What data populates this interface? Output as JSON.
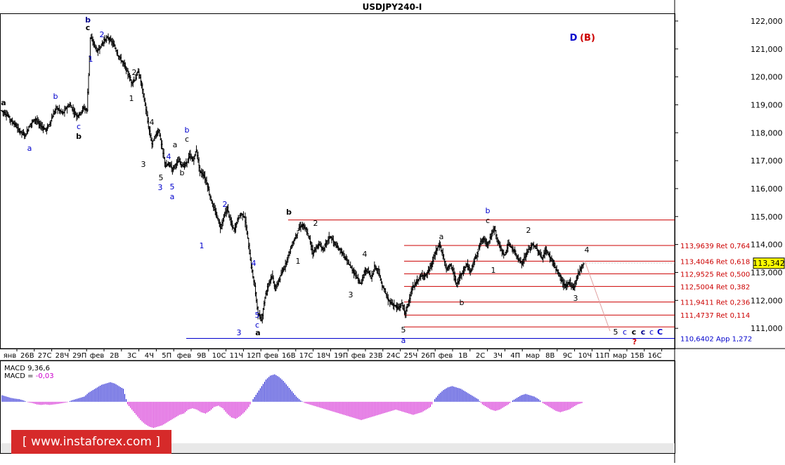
{
  "chart_data": {
    "type": "ohlc",
    "title": "USDJPY240-I",
    "wave_title_d": "D",
    "wave_title_b": "(B)",
    "y_range": [
      110.3,
      122.25
    ],
    "y_ticks": [
      "122,000",
      "121,000",
      "120,000",
      "119,000",
      "118,000",
      "117,000",
      "116,000",
      "115,000",
      "114,000",
      "113,000",
      "112,000",
      "111,000"
    ],
    "x_ticks": [
      "янв",
      "26В",
      "27С",
      "28Ч",
      "29П",
      "фев",
      "2В",
      "3С",
      "4Ч",
      "5П",
      "фев",
      "9В",
      "10С",
      "11Ч",
      "12П",
      "фев",
      "16В",
      "17С",
      "18Ч",
      "19П",
      "фев",
      "23В",
      "24С",
      "25Ч",
      "26П",
      "фев",
      "1В",
      "2С",
      "3Ч",
      "4П",
      "мар",
      "8В",
      "9С",
      "10Ч",
      "11П",
      "мар",
      "15В",
      "16С"
    ],
    "current_price": "113,342",
    "price_path": [
      118.8,
      118.7,
      118.6,
      118.4,
      118.3,
      118.1,
      118.0,
      117.9,
      118.2,
      118.4,
      118.5,
      118.3,
      118.2,
      118.1,
      118.3,
      118.6,
      118.9,
      118.8,
      118.7,
      118.9,
      119.0,
      118.8,
      118.6,
      118.7,
      118.9,
      118.8,
      121.4,
      121.2,
      120.9,
      121.1,
      121.3,
      121.4,
      121.3,
      121.1,
      120.8,
      120.6,
      120.4,
      120.1,
      119.8,
      119.9,
      120.2,
      119.7,
      119.0,
      118.2,
      117.6,
      117.9,
      118.1,
      117.4,
      116.8,
      116.9,
      116.7,
      116.9,
      117.0,
      116.8,
      116.9,
      117.2,
      117.0,
      117.4,
      116.6,
      116.5,
      116.2,
      115.7,
      115.3,
      115.0,
      114.6,
      115.0,
      115.3,
      114.8,
      114.5,
      114.9,
      115.1,
      115.0,
      114.2,
      113.2,
      112.5,
      111.5,
      111.3,
      112.1,
      112.6,
      112.9,
      112.4,
      112.7,
      113.0,
      113.3,
      113.7,
      114.0,
      114.3,
      114.6,
      114.7,
      114.5,
      114.2,
      113.7,
      113.9,
      114.0,
      113.8,
      114.1,
      114.3,
      114.1,
      113.9,
      113.8,
      113.6,
      113.4,
      113.2,
      113.0,
      112.8,
      112.6,
      113.0,
      113.1,
      112.8,
      113.2,
      113.1,
      112.6,
      112.3,
      112.0,
      111.9,
      111.8,
      111.7,
      111.9,
      111.5,
      112.0,
      112.4,
      112.6,
      112.8,
      112.9,
      112.9,
      113.1,
      113.4,
      113.8,
      114.0,
      113.6,
      113.1,
      113.3,
      113.0,
      112.5,
      112.9,
      113.1,
      113.3,
      113.0,
      113.4,
      113.7,
      114.1,
      114.2,
      114.0,
      114.3,
      114.6,
      114.1,
      113.8,
      113.6,
      114.0,
      113.9,
      113.7,
      113.5,
      113.3,
      113.6,
      113.8,
      114.0,
      113.9,
      113.7,
      113.5,
      113.8,
      113.6,
      113.4,
      113.1,
      112.9,
      112.6,
      112.5,
      112.7,
      112.4,
      112.8,
      113.1,
      113.34
    ],
    "fib_levels": [
      {
        "price": 113.9639,
        "label": "113,9639 Ret 0,764"
      },
      {
        "price": 113.4046,
        "label": "113,4046 Ret 0,618"
      },
      {
        "price": 112.9525,
        "label": "112,9525 Ret 0,500"
      },
      {
        "price": 112.5004,
        "label": "112,5004 Ret 0,382"
      },
      {
        "price": 111.9411,
        "label": "111,9411 Ret 0,236"
      },
      {
        "price": 111.4737,
        "label": "111,4737 Ret 0,114"
      }
    ],
    "top_level": {
      "price": 114.88
    },
    "low_level": {
      "price": 111.05
    },
    "blue_level": {
      "price": 110.6402,
      "label": "110,6402 App 1,272"
    },
    "wave_labels": [
      {
        "text": "b",
        "x": 125,
        "y": 32,
        "color": "#00008b",
        "bold": true
      },
      {
        "text": "c",
        "x": 125,
        "y": 43,
        "color": "#000000",
        "bold": true
      },
      {
        "text": "2",
        "x": 145,
        "y": 53,
        "color": "#0000cc"
      },
      {
        "text": "1",
        "x": 129,
        "y": 88,
        "color": "#0000cc"
      },
      {
        "text": "a",
        "x": 5,
        "y": 150,
        "color": "#000000",
        "bold": true
      },
      {
        "text": "b",
        "x": 79,
        "y": 141,
        "color": "#0000cc"
      },
      {
        "text": "c",
        "x": 112,
        "y": 184,
        "color": "#0000cc"
      },
      {
        "text": "b",
        "x": 112,
        "y": 198,
        "color": "#000000",
        "bold": true
      },
      {
        "text": "a",
        "x": 42,
        "y": 215,
        "color": "#0000cc"
      },
      {
        "text": "2",
        "x": 191,
        "y": 107,
        "color": "#000000"
      },
      {
        "text": "1",
        "x": 187,
        "y": 144,
        "color": "#000000"
      },
      {
        "text": "4",
        "x": 216,
        "y": 178,
        "color": "#000000"
      },
      {
        "text": "3",
        "x": 204,
        "y": 238,
        "color": "#000000"
      },
      {
        "text": "a",
        "x": 249,
        "y": 210,
        "color": "#000000"
      },
      {
        "text": "b",
        "x": 266,
        "y": 189,
        "color": "#0000cc"
      },
      {
        "text": "c",
        "x": 266,
        "y": 202,
        "color": "#000000"
      },
      {
        "text": "4",
        "x": 240,
        "y": 227,
        "color": "#0000cc"
      },
      {
        "text": "b",
        "x": 259,
        "y": 250,
        "color": "#000000"
      },
      {
        "text": "5",
        "x": 229,
        "y": 257,
        "color": "#000000"
      },
      {
        "text": "3",
        "x": 228,
        "y": 271,
        "color": "#0000cc"
      },
      {
        "text": "5",
        "x": 245,
        "y": 270,
        "color": "#0000cc"
      },
      {
        "text": "a",
        "x": 245,
        "y": 284,
        "color": "#0000cc"
      },
      {
        "text": "2",
        "x": 320,
        "y": 295,
        "color": "#0000cc"
      },
      {
        "text": "1",
        "x": 287,
        "y": 354,
        "color": "#0000cc"
      },
      {
        "text": "4",
        "x": 361,
        "y": 379,
        "color": "#0000cc"
      },
      {
        "text": "3",
        "x": 340,
        "y": 478,
        "color": "#0000cc"
      },
      {
        "text": "5",
        "x": 366,
        "y": 453,
        "color": "#0000cc"
      },
      {
        "text": "c",
        "x": 366,
        "y": 467,
        "color": "#0000cc"
      },
      {
        "text": "a",
        "x": 367,
        "y": 478,
        "color": "#000000",
        "bold": true
      },
      {
        "text": "b",
        "x": 411,
        "y": 306,
        "color": "#000000",
        "bold": true
      },
      {
        "text": "2",
        "x": 449,
        "y": 322,
        "color": "#000000"
      },
      {
        "text": "1",
        "x": 424,
        "y": 376,
        "color": "#000000"
      },
      {
        "text": "4",
        "x": 519,
        "y": 366,
        "color": "#000000"
      },
      {
        "text": "3",
        "x": 499,
        "y": 424,
        "color": "#000000"
      },
      {
        "text": "5",
        "x": 574,
        "y": 474,
        "color": "#000000"
      },
      {
        "text": "a",
        "x": 574,
        "y": 489,
        "color": "#0000cc"
      },
      {
        "text": "a",
        "x": 628,
        "y": 341,
        "color": "#000000"
      },
      {
        "text": "b",
        "x": 657,
        "y": 435,
        "color": "#000000"
      },
      {
        "text": "b",
        "x": 694,
        "y": 304,
        "color": "#0000cc"
      },
      {
        "text": "c",
        "x": 694,
        "y": 318,
        "color": "#000000"
      },
      {
        "text": "1",
        "x": 702,
        "y": 389,
        "color": "#000000"
      },
      {
        "text": "2",
        "x": 752,
        "y": 332,
        "color": "#000000"
      },
      {
        "text": "3",
        "x": 819,
        "y": 429,
        "color": "#000000"
      },
      {
        "text": "4",
        "x": 835,
        "y": 360,
        "color": "#000000"
      },
      {
        "text": "5",
        "x": 876,
        "y": 477,
        "color": "#000000"
      },
      {
        "text": "c",
        "x": 889,
        "y": 477,
        "color": "#0000cc"
      },
      {
        "text": "c",
        "x": 902,
        "y": 477,
        "color": "#000000",
        "bold": true
      },
      {
        "text": "c",
        "x": 915,
        "y": 477,
        "color": "#00008b",
        "bold": true
      },
      {
        "text": "c",
        "x": 927,
        "y": 477,
        "color": "#0000cc"
      },
      {
        "text": "C",
        "x": 939,
        "y": 477,
        "color": "#0000cc",
        "bold": true
      },
      {
        "text": "?",
        "x": 903,
        "y": 491,
        "color": "#cc0000",
        "bold": true
      }
    ],
    "macd": {
      "label": "MACD 9,36,6",
      "value_label": "MACD = ",
      "value": "-0,03",
      "histogram": [
        0.25,
        0.2,
        0.15,
        0.12,
        0.1,
        0.05,
        -0.02,
        -0.05,
        -0.1,
        -0.12,
        -0.1,
        -0.12,
        -0.1,
        -0.08,
        -0.05,
        -0.02,
        0.05,
        0.1,
        0.15,
        0.2,
        0.35,
        0.45,
        0.55,
        0.65,
        0.7,
        0.75,
        0.7,
        0.6,
        0.5,
        -0.1,
        -0.3,
        -0.5,
        -0.7,
        -0.85,
        -0.95,
        -1.0,
        -0.95,
        -0.9,
        -0.8,
        -0.7,
        -0.6,
        -0.5,
        -0.45,
        -0.3,
        -0.25,
        -0.3,
        -0.4,
        -0.45,
        -0.35,
        -0.2,
        -0.15,
        -0.25,
        -0.45,
        -0.6,
        -0.65,
        -0.55,
        -0.4,
        -0.2,
        0.1,
        0.35,
        0.6,
        0.85,
        1.0,
        1.05,
        0.95,
        0.8,
        0.6,
        0.4,
        0.2,
        0.05,
        -0.05,
        -0.1,
        -0.15,
        -0.2,
        -0.25,
        -0.3,
        -0.35,
        -0.4,
        -0.45,
        -0.5,
        -0.55,
        -0.6,
        -0.65,
        -0.7,
        -0.65,
        -0.6,
        -0.55,
        -0.5,
        -0.45,
        -0.4,
        -0.35,
        -0.3,
        -0.35,
        -0.4,
        -0.45,
        -0.5,
        -0.45,
        -0.4,
        -0.3,
        -0.2,
        0.1,
        0.3,
        0.45,
        0.55,
        0.6,
        0.55,
        0.5,
        0.4,
        0.3,
        0.2,
        0.1,
        -0.1,
        -0.2,
        -0.3,
        -0.35,
        -0.3,
        -0.2,
        -0.1,
        0.05,
        0.15,
        0.25,
        0.3,
        0.25,
        0.2,
        0.1,
        -0.05,
        -0.15,
        -0.25,
        -0.35,
        -0.4,
        -0.35,
        -0.3,
        -0.2,
        -0.1,
        -0.05
      ],
      "range": [
        -1.05,
        1.15
      ]
    }
  },
  "watermark": "[ www.instaforex.com ]"
}
